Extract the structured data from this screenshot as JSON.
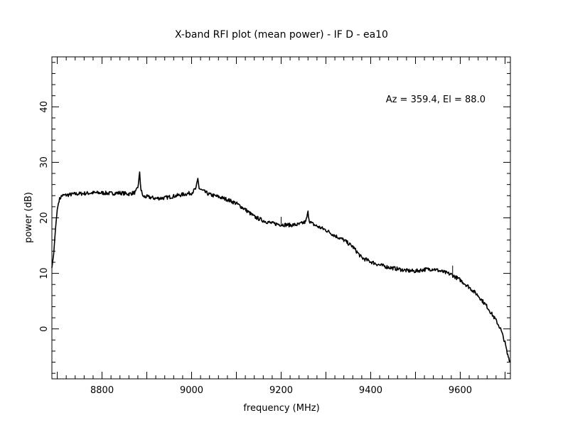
{
  "chart_data": {
    "type": "line",
    "title": "X-band RFI plot (mean power) - IF D - ea10",
    "xlabel": "frequency (MHz)",
    "ylabel": "power (dB)",
    "annotation": "Az = 359.4, El = 88.0",
    "xlim": [
      8688,
      9712
    ],
    "ylim": [
      -9,
      49
    ],
    "x_ticks": [
      8800,
      9000,
      9200,
      9400,
      9600
    ],
    "y_ticks": [
      0,
      10,
      20,
      30,
      40
    ],
    "grid": false,
    "line_color": "#000000",
    "series": [
      {
        "x": [
          8688,
          8692,
          8696,
          8700,
          8704,
          8710,
          8720,
          8740,
          8760,
          8780,
          8800,
          8820,
          8840,
          8860,
          8875,
          8880,
          8884,
          8887,
          8892,
          8900,
          8920,
          8940,
          8960,
          8980,
          9000,
          9010,
          9014,
          9017,
          9022,
          9040,
          9060,
          9080,
          9100,
          9120,
          9140,
          9160,
          9180,
          9200,
          9220,
          9240,
          9255,
          9260,
          9263,
          9268,
          9280,
          9300,
          9320,
          9340,
          9360,
          9380,
          9400,
          9420,
          9440,
          9460,
          9480,
          9500,
          9520,
          9540,
          9560,
          9580,
          9600,
          9620,
          9640,
          9660,
          9680,
          9690,
          9700,
          9705,
          9712
        ],
        "y": [
          11,
          13.5,
          18,
          21.5,
          23.2,
          24,
          24.1,
          24.3,
          24.4,
          24.5,
          24.5,
          24.4,
          24.5,
          24.3,
          24.6,
          25.5,
          28,
          25,
          23.8,
          23.8,
          23.5,
          23.6,
          23.9,
          24.2,
          24.5,
          25.3,
          27,
          25.3,
          25,
          24.2,
          23.8,
          23.3,
          22.6,
          21.5,
          20.2,
          19.5,
          19.0,
          18.8,
          18.7,
          18.8,
          19.3,
          21,
          19.5,
          19.0,
          18.5,
          17.8,
          16.8,
          16.0,
          14.8,
          12.8,
          12.1,
          11.5,
          11.1,
          10.8,
          10.5,
          10.4,
          10.7,
          10.8,
          10.3,
          9.8,
          8.8,
          7.5,
          6.0,
          4.0,
          1.5,
          0.0,
          -2.5,
          -4.5,
          -6
        ]
      }
    ]
  }
}
